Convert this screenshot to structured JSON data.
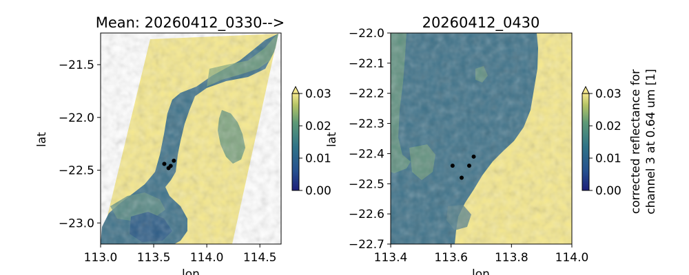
{
  "chart_data": [
    {
      "type": "heatmap",
      "title": "Mean: 20260412_0330-->",
      "xlabel": "lon",
      "ylabel": "lat",
      "xlim": [
        113.0,
        114.7
      ],
      "ylim": [
        -23.2,
        -21.2
      ],
      "xticks": [
        "113.0",
        "113.5",
        "114.0",
        "114.5"
      ],
      "yticks": [
        "−21.5",
        "−22.0",
        "−22.5",
        "−23.0"
      ],
      "colorbar": {
        "min": 0.0,
        "max": 0.03,
        "ticks": [
          "0.00",
          "0.01",
          "0.02",
          "0.03"
        ],
        "extend": "max",
        "colormap": "cividis-like"
      },
      "points": [
        {
          "lon": 113.6,
          "lat": -22.44
        },
        {
          "lon": 113.66,
          "lat": -22.46
        },
        {
          "lon": 113.69,
          "lat": -22.41
        },
        {
          "lon": 113.64,
          "lat": -22.48
        }
      ]
    },
    {
      "type": "heatmap",
      "title": "20260412_0430",
      "xlabel": "lon",
      "ylabel": "lat",
      "xlim": [
        113.4,
        114.0
      ],
      "ylim": [
        -22.7,
        -22.0
      ],
      "xticks": [
        "113.4",
        "113.6",
        "113.8",
        "114.0"
      ],
      "yticks": [
        "−22.0",
        "−22.1",
        "−22.2",
        "−22.3",
        "−22.4",
        "−22.5",
        "−22.6",
        "−22.7"
      ],
      "colorbar": {
        "min": 0.0,
        "max": 0.03,
        "ticks": [
          "0.00",
          "0.01",
          "0.02",
          "0.03"
        ],
        "extend": "max",
        "label": [
          "corrected reflectance for",
          "channel 3 at 0.64 um [1]"
        ]
      },
      "points": [
        {
          "lon": 113.605,
          "lat": -22.44
        },
        {
          "lon": 113.635,
          "lat": -22.48
        },
        {
          "lon": 113.66,
          "lat": -22.44
        },
        {
          "lon": 113.675,
          "lat": -22.41
        }
      ]
    }
  ],
  "colors": {
    "land": "#f5e88d",
    "water_dark": "#2c5d87",
    "water_mid": "#4b7a8c",
    "water_light": "#7da67a",
    "colormap": [
      "#00204d",
      "#2d4a83",
      "#3b6f8c",
      "#63927a",
      "#a6b35c",
      "#f5e88d"
    ]
  }
}
